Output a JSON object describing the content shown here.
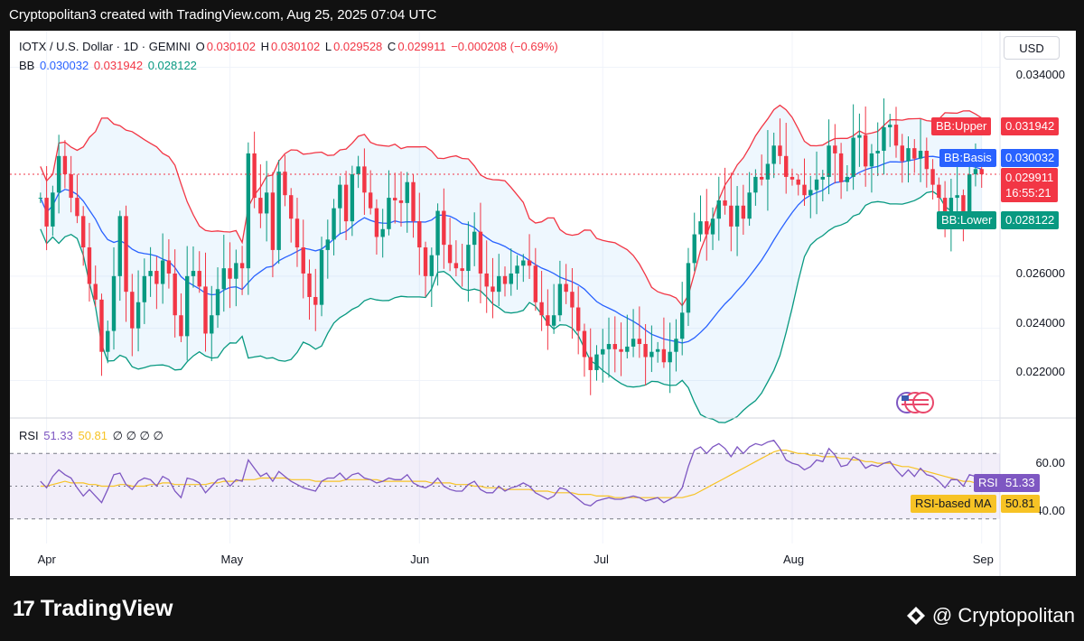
{
  "header": {
    "text": "Cryptopolitan3 created with TradingView.com, Aug 25, 2025 07:04 UTC"
  },
  "legend": {
    "symbol": "IOTX / U.S. Dollar · 1D · GEMINI",
    "o_label": "O",
    "o_value": "0.030102",
    "h_label": "H",
    "h_value": "0.030102",
    "l_label": "L",
    "l_value": "0.029528",
    "c_label": "C",
    "c_value": "0.029911",
    "change": "−0.000208 (−0.69%)",
    "bb_label": "BB",
    "bb_basis": "0.030032",
    "bb_upper": "0.031942",
    "bb_lower": "0.028122"
  },
  "rsi_legend": {
    "label": "RSI",
    "rsi": "51.33",
    "ma": "50.81",
    "extra": "∅ ∅ ∅ ∅"
  },
  "currency": "USD",
  "price_tags": {
    "upper_label": "BB:Upper",
    "upper_value": "0.031942",
    "basis_label": "BB:Basis",
    "basis_value": "0.030032",
    "close_value": "0.029911",
    "countdown": "16:55:21",
    "lower_label": "BB:Lower",
    "lower_value": "0.028122"
  },
  "rsi_tags": {
    "rsi_label": "RSI",
    "rsi_value": "51.33",
    "ma_label": "RSI-based MA",
    "ma_value": "50.81",
    "level_60": "60.00",
    "level_40": "40.00"
  },
  "colors": {
    "up": "#089981",
    "down": "#f23645",
    "basis": "#2962ff",
    "upper": "#f23645",
    "lower": "#089981",
    "rsi": "#7e57c2",
    "rsi_ma": "#f7c325"
  },
  "footer": {
    "brand": "TradingView",
    "watermark": "@ Cryptopolitan"
  },
  "chart_data": {
    "type": "candlestick",
    "title": "IOTX / U.S. Dollar · 1D · GEMINI",
    "price_ticks": [
      "0.034000",
      "0.026000",
      "0.024000",
      "0.022000"
    ],
    "ylim": [
      0.0206,
      0.0354
    ],
    "x_ticks": [
      {
        "label": "Apr",
        "day": 1
      },
      {
        "label": "May",
        "day": 31
      },
      {
        "label": "Jun",
        "day": 62
      },
      {
        "label": "Jul",
        "day": 92
      },
      {
        "label": "Aug",
        "day": 123
      },
      {
        "label": "Sep",
        "day": 154
      }
    ],
    "x_domain": [
      -5,
      157
    ],
    "close": [
      0.029,
      0.0279,
      0.0292,
      0.0306,
      0.0299,
      0.029,
      0.0283,
      0.0271,
      0.0257,
      0.0251,
      0.0231,
      0.0239,
      0.026,
      0.0283,
      0.0254,
      0.024,
      0.025,
      0.026,
      0.0262,
      0.0257,
      0.0266,
      0.0261,
      0.0245,
      0.0237,
      0.026,
      0.0262,
      0.0256,
      0.0238,
      0.0245,
      0.0255,
      0.0263,
      0.0259,
      0.0265,
      0.0263,
      0.0307,
      0.029,
      0.0284,
      0.0292,
      0.027,
      0.03,
      0.0291,
      0.0282,
      0.0271,
      0.0261,
      0.0252,
      0.0249,
      0.027,
      0.0274,
      0.0286,
      0.0295,
      0.0281,
      0.0299,
      0.0302,
      0.0292,
      0.0286,
      0.0275,
      0.0278,
      0.029,
      0.0289,
      0.0288,
      0.0296,
      0.0281,
      0.0271,
      0.026,
      0.0268,
      0.0285,
      0.0272,
      0.0265,
      0.0263,
      0.0262,
      0.0272,
      0.0277,
      0.0261,
      0.0256,
      0.0254,
      0.026,
      0.0257,
      0.0261,
      0.0264,
      0.0266,
      0.0264,
      0.025,
      0.0245,
      0.0241,
      0.0245,
      0.0257,
      0.0254,
      0.0248,
      0.0239,
      0.0229,
      0.0224,
      0.023,
      0.0232,
      0.0234,
      0.0232,
      0.0231,
      0.0233,
      0.0236,
      0.0234,
      0.0229,
      0.0231,
      0.0232,
      0.0227,
      0.0231,
      0.0236,
      0.0246,
      0.0265,
      0.0276,
      0.0281,
      0.0276,
      0.0282,
      0.0289,
      0.0287,
      0.0279,
      0.0287,
      0.0282,
      0.0292,
      0.0298,
      0.0297,
      0.0303,
      0.031,
      0.0306,
      0.0298,
      0.0297,
      0.0295,
      0.0291,
      0.0293,
      0.0297,
      0.0298,
      0.031,
      0.0307,
      0.0296,
      0.0298,
      0.0313,
      0.0314,
      0.0302,
      0.0307,
      0.0308,
      0.0317,
      0.0318,
      0.031,
      0.0304,
      0.0309,
      0.0305,
      0.0308,
      0.0301,
      0.0295,
      0.029,
      0.0281,
      0.029,
      0.0291,
      0.0284,
      0.0299,
      0.0301,
      0.0299
    ],
    "rsi": [
      53,
      49,
      56,
      60,
      57,
      55,
      49,
      44,
      48,
      44,
      40,
      48,
      57,
      58,
      51,
      48,
      53,
      55,
      54,
      50,
      56,
      54,
      47,
      43,
      55,
      54,
      52,
      46,
      50,
      54,
      55,
      50,
      54,
      53,
      66,
      61,
      56,
      58,
      53,
      59,
      56,
      53,
      51,
      49,
      48,
      47,
      53,
      55,
      55,
      58,
      54,
      57,
      58,
      55,
      54,
      52,
      53,
      55,
      54,
      54,
      57,
      52,
      50,
      49,
      51,
      55,
      50,
      48,
      47,
      47,
      51,
      53,
      48,
      46,
      46,
      50,
      47,
      49,
      50,
      52,
      50,
      46,
      44,
      42,
      44,
      49,
      48,
      45,
      42,
      39,
      38,
      41,
      42,
      43,
      42,
      42,
      43,
      44,
      43,
      41,
      42,
      43,
      40,
      42,
      44,
      49,
      62,
      72,
      74,
      70,
      74,
      76,
      73,
      68,
      74,
      70,
      74,
      76,
      75,
      77,
      78,
      73,
      66,
      64,
      63,
      60,
      62,
      66,
      65,
      73,
      69,
      62,
      63,
      68,
      66,
      61,
      63,
      62,
      64,
      65,
      60,
      56,
      60,
      56,
      61,
      57,
      56,
      53,
      49,
      54,
      54,
      50,
      57,
      56,
      51
    ],
    "rsi_ma": [
      50,
      50,
      51,
      52,
      53,
      52,
      52,
      52,
      51,
      51,
      50,
      50,
      50,
      51,
      51,
      50,
      50,
      50,
      51,
      51,
      52,
      52,
      51,
      51,
      51,
      51,
      51,
      51,
      52,
      52,
      53,
      53,
      53,
      54,
      54,
      54,
      55,
      55,
      55,
      55,
      55,
      54,
      54,
      54,
      54,
      53,
      53,
      53,
      53,
      53,
      54,
      54,
      54,
      54,
      54,
      54,
      53,
      53,
      53,
      53,
      53,
      53,
      53,
      53,
      52,
      52,
      52,
      52,
      51,
      51,
      51,
      50,
      50,
      49,
      49,
      49,
      48,
      48,
      48,
      48,
      48,
      47,
      47,
      47,
      46,
      46,
      46,
      46,
      45,
      45,
      45,
      44,
      44,
      44,
      43,
      43,
      43,
      43,
      43,
      43,
      43,
      43,
      43,
      43,
      43,
      43,
      44,
      45,
      47,
      49,
      51,
      53,
      55,
      57,
      59,
      61,
      63,
      65,
      67,
      69,
      71,
      72,
      72,
      71,
      70,
      70,
      69,
      69,
      68,
      68,
      68,
      67,
      67,
      66,
      66,
      65,
      65,
      64,
      64,
      64,
      63,
      62,
      62,
      61,
      60,
      59,
      58,
      57,
      56,
      55,
      54,
      53,
      53,
      52,
      51
    ],
    "rsi_ylim": [
      15,
      90
    ],
    "rsi_levels": [
      70,
      50,
      30
    ]
  }
}
